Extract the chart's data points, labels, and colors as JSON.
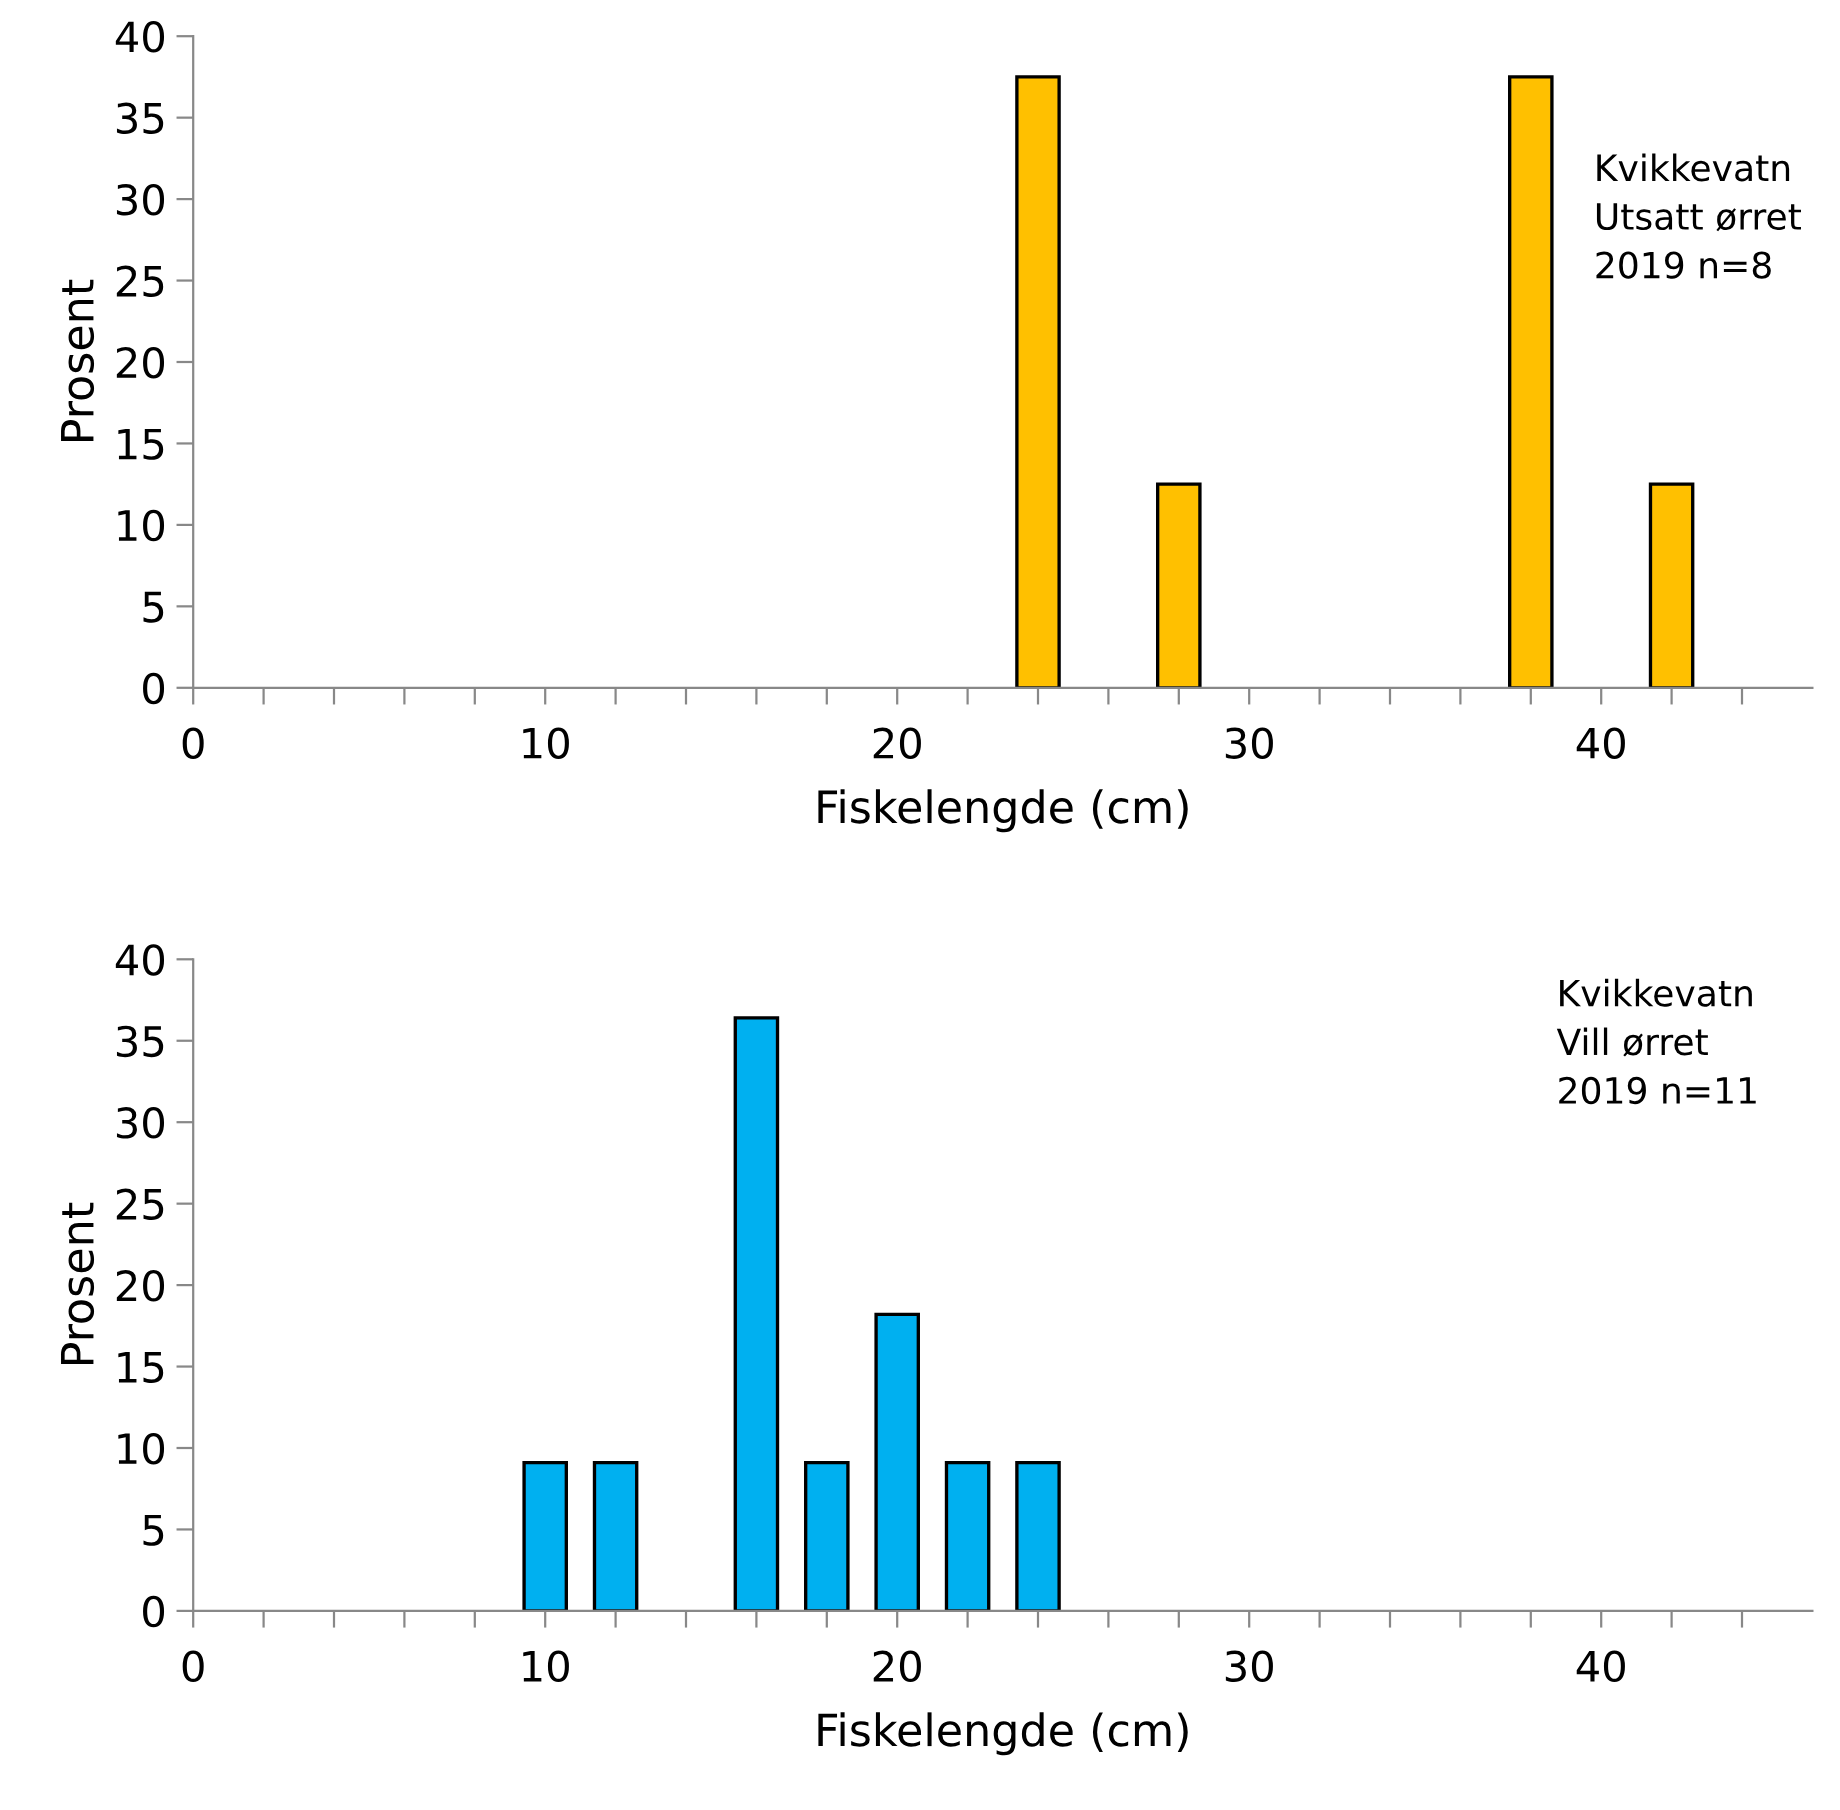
{
  "chart_data": [
    {
      "type": "bar",
      "xlabel": "Fiskelengde (cm)",
      "ylabel": "Prosent",
      "annotations": [
        "Kvikkevatn\nUtsatt ørret\n2019 n=8"
      ],
      "x": [
        24,
        28,
        38,
        42
      ],
      "values": [
        37.5,
        12.5,
        37.5,
        12.5
      ],
      "color": "#ffc000",
      "xlim": [
        0,
        46
      ],
      "xticks": [
        0,
        {
          "value": 2,
          "label": null
        },
        {
          "value": 4,
          "label": null
        },
        {
          "value": 6,
          "label": null
        },
        {
          "value": 8,
          "label": null
        },
        10,
        {
          "value": 12,
          "label": null
        },
        {
          "value": 14,
          "label": null
        },
        {
          "value": 16,
          "label": null
        },
        {
          "value": 18,
          "label": null
        },
        20,
        {
          "value": 22,
          "label": null
        },
        {
          "value": 24,
          "label": null
        },
        {
          "value": 26,
          "label": null
        },
        {
          "value": 28,
          "label": null
        },
        30,
        {
          "value": 32,
          "label": null
        },
        {
          "value": 34,
          "label": null
        },
        {
          "value": 36,
          "label": null
        },
        {
          "value": 38,
          "label": null
        },
        40,
        {
          "value": 42,
          "label": null
        },
        {
          "value": 44,
          "label": null
        }
      ],
      "ylim": [
        0,
        40
      ],
      "yticks": [
        0,
        5,
        10,
        15,
        20,
        25,
        30,
        35,
        40
      ],
      "grid": false,
      "legend": false
    },
    {
      "type": "bar",
      "xlabel": "Fiskelengde (cm)",
      "ylabel": "Prosent",
      "annotations": [
        "Kvikkevatn\nVill ørret\n2019 n=11"
      ],
      "x": [
        10,
        12,
        16,
        18,
        20,
        22,
        24
      ],
      "values": [
        9.1,
        9.1,
        36.4,
        9.1,
        18.2,
        9.1,
        9.1
      ],
      "color": "#00b0f0",
      "xlim": [
        0,
        46
      ],
      "xticks": [
        0,
        {
          "value": 2,
          "label": null
        },
        {
          "value": 4,
          "label": null
        },
        {
          "value": 6,
          "label": null
        },
        {
          "value": 8,
          "label": null
        },
        10,
        {
          "value": 12,
          "label": null
        },
        {
          "value": 14,
          "label": null
        },
        {
          "value": 16,
          "label": null
        },
        {
          "value": 18,
          "label": null
        },
        20,
        {
          "value": 22,
          "label": null
        },
        {
          "value": 24,
          "label": null
        },
        {
          "value": 26,
          "label": null
        },
        {
          "value": 28,
          "label": null
        },
        30,
        {
          "value": 32,
          "label": null
        },
        {
          "value": 34,
          "label": null
        },
        {
          "value": 36,
          "label": null
        },
        {
          "value": 38,
          "label": null
        },
        40,
        {
          "value": 42,
          "label": null
        },
        {
          "value": 44,
          "label": null
        }
      ],
      "ylim": [
        0,
        40
      ],
      "yticks": [
        0,
        5,
        10,
        15,
        20,
        25,
        30,
        35,
        40
      ],
      "grid": false,
      "legend": false
    }
  ]
}
